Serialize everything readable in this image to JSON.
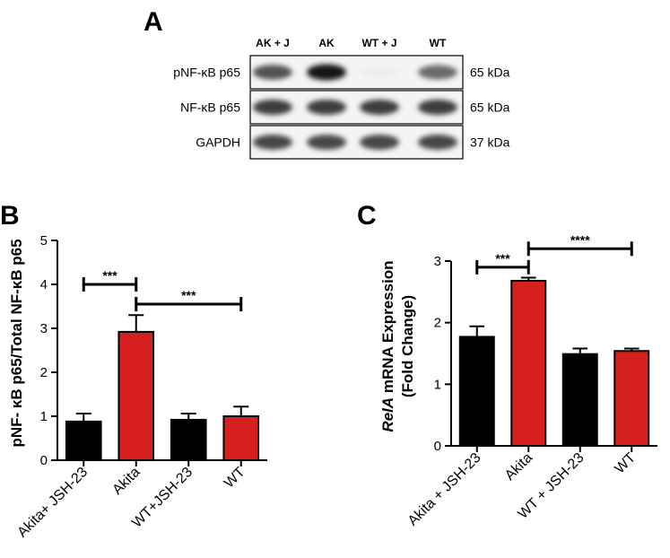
{
  "panel_a": {
    "letter": "A",
    "lanes": [
      "AK + J",
      "AK",
      "WT + J",
      "WT"
    ],
    "rows": [
      {
        "label": "pNF-κB p65",
        "kda": "65 kDa",
        "intensity": [
          0.75,
          1.0,
          0.08,
          0.65
        ]
      },
      {
        "label": "NF-κB p65",
        "kda": "65 kDa",
        "intensity": [
          0.85,
          0.85,
          0.85,
          0.85
        ]
      },
      {
        "label": "GAPDH",
        "kda": "37 kDa",
        "intensity": [
          0.8,
          0.8,
          0.8,
          0.8
        ]
      }
    ]
  },
  "chart_data": [
    {
      "panel": "B",
      "type": "bar",
      "categories": [
        "Akita+ JSH-23",
        "Akita",
        "WT+JSH-23",
        "WT"
      ],
      "values": [
        0.88,
        2.92,
        0.92,
        1.0
      ],
      "errors": [
        0.18,
        0.38,
        0.14,
        0.22
      ],
      "colors": [
        "#000000",
        "#d62020",
        "#000000",
        "#d62020"
      ],
      "ylabel": "pNF- κB p65/Total NF-κB p65",
      "ylim": [
        0,
        5
      ],
      "yticks": [
        0,
        1,
        2,
        3,
        4,
        5
      ],
      "significance": [
        {
          "from": 0,
          "to": 1,
          "label": "***",
          "y": 4.0
        },
        {
          "from": 1,
          "to": 3,
          "label": "***",
          "y": 3.55
        }
      ]
    },
    {
      "panel": "C",
      "type": "bar",
      "categories": [
        "Akita + JSH-23",
        "Akita",
        "WT + JSH-23",
        "WT"
      ],
      "values": [
        1.77,
        2.68,
        1.49,
        1.54
      ],
      "errors": [
        0.17,
        0.05,
        0.09,
        0.04
      ],
      "colors": [
        "#000000",
        "#d62020",
        "#000000",
        "#d62020"
      ],
      "ylabel_italic": "RelA",
      "ylabel_rest": " mRNA Expression",
      "ylabel2": "(Fold Change)",
      "ylim": [
        0,
        3
      ],
      "yticks": [
        0,
        1,
        2,
        3
      ],
      "significance": [
        {
          "from": 0,
          "to": 1,
          "label": "***",
          "y": 2.9
        },
        {
          "from": 1,
          "to": 3,
          "label": "****",
          "y": 3.2
        }
      ]
    }
  ]
}
